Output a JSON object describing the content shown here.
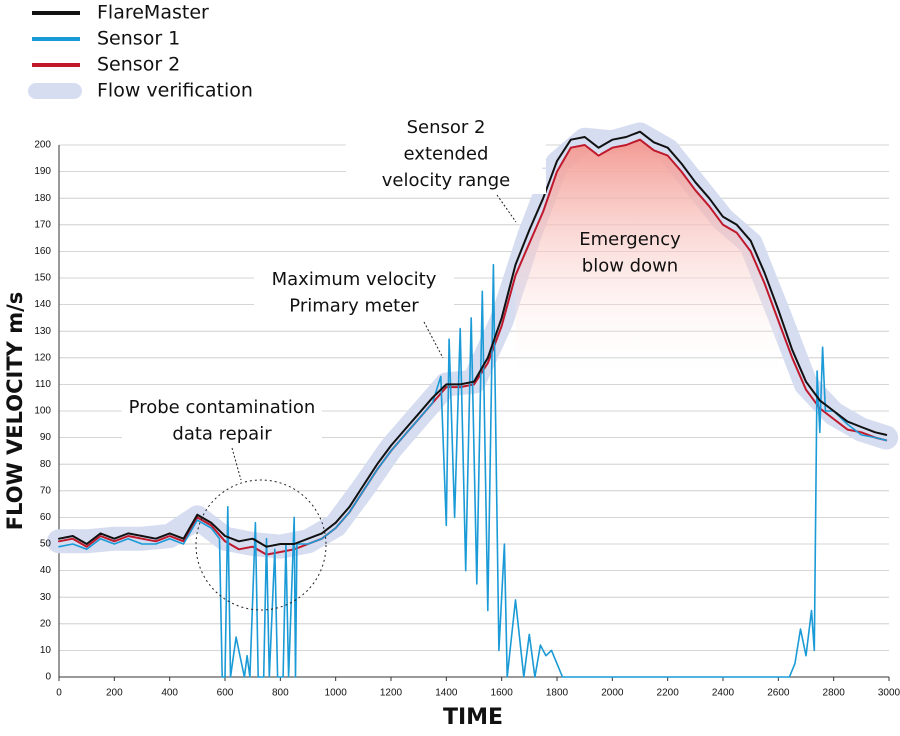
{
  "chart_data": {
    "type": "line",
    "xlabel": "TIME",
    "ylabel": "FLOW VELOCITY m/s",
    "xlim": [
      0,
      3000
    ],
    "ylim": [
      0,
      200
    ],
    "xticks": [
      0,
      200,
      400,
      600,
      800,
      1000,
      1200,
      1400,
      1600,
      1800,
      2000,
      2200,
      2400,
      2600,
      2800,
      3000
    ],
    "yticks": [
      0,
      10,
      20,
      30,
      40,
      50,
      60,
      70,
      80,
      90,
      100,
      110,
      120,
      130,
      140,
      150,
      160,
      170,
      180,
      190,
      200
    ],
    "grid": true,
    "series": [
      {
        "name": "FlareMaster",
        "color": "#111111",
        "x": [
          0,
          50,
          100,
          150,
          200,
          250,
          300,
          350,
          400,
          450,
          500,
          550,
          600,
          650,
          700,
          750,
          800,
          850,
          900,
          950,
          1000,
          1050,
          1100,
          1150,
          1200,
          1250,
          1300,
          1350,
          1400,
          1450,
          1500,
          1550,
          1600,
          1650,
          1700,
          1750,
          1800,
          1850,
          1900,
          1950,
          2000,
          2050,
          2100,
          2150,
          2200,
          2250,
          2300,
          2350,
          2400,
          2450,
          2500,
          2550,
          2600,
          2650,
          2700,
          2750,
          2800,
          2850,
          2900,
          2950,
          2990
        ],
        "values": [
          52,
          53,
          50,
          54,
          52,
          54,
          53,
          52,
          54,
          52,
          61,
          58,
          53,
          51,
          52,
          49,
          50,
          50,
          52,
          54,
          58,
          64,
          72,
          80,
          87,
          93,
          99,
          105,
          110,
          110,
          111,
          120,
          135,
          155,
          168,
          180,
          194,
          202,
          203,
          199,
          202,
          203,
          205,
          201,
          199,
          193,
          186,
          180,
          173,
          170,
          164,
          152,
          138,
          123,
          111,
          104,
          100,
          96,
          94,
          92,
          91
        ]
      },
      {
        "name": "Sensor 1",
        "color": "#1a9ad6",
        "x": [
          0,
          50,
          100,
          150,
          200,
          250,
          300,
          350,
          400,
          450,
          500,
          550,
          580,
          590,
          600,
          610,
          620,
          640,
          650,
          670,
          680,
          690,
          710,
          720,
          740,
          750,
          760,
          780,
          790,
          810,
          820,
          830,
          850,
          855,
          860,
          900,
          950,
          1000,
          1050,
          1100,
          1150,
          1200,
          1250,
          1300,
          1350,
          1380,
          1400,
          1410,
          1430,
          1450,
          1470,
          1490,
          1510,
          1530,
          1550,
          1570,
          1590,
          1610,
          1620,
          1650,
          1680,
          1700,
          1720,
          1740,
          1760,
          1780,
          1800,
          1820,
          2000,
          2640,
          2660,
          2680,
          2700,
          2720,
          2730,
          2740,
          2750,
          2760,
          2770,
          2800,
          2850,
          2900,
          2950,
          2990
        ],
        "values": [
          49,
          50,
          48,
          52,
          50,
          52,
          50,
          50,
          52,
          50,
          59,
          56,
          52,
          0,
          0,
          64,
          0,
          15,
          10,
          0,
          8,
          0,
          58,
          0,
          0,
          52,
          0,
          48,
          0,
          0,
          50,
          0,
          60,
          0,
          50,
          50,
          52,
          56,
          62,
          70,
          78,
          85,
          91,
          97,
          103,
          113,
          57,
          127,
          60,
          131,
          40,
          135,
          35,
          145,
          25,
          155,
          10,
          50,
          0,
          29,
          0,
          16,
          0,
          12,
          8,
          10,
          5,
          0,
          0,
          0,
          5,
          18,
          8,
          25,
          10,
          115,
          92,
          124,
          100,
          100,
          95,
          91,
          90,
          89
        ]
      },
      {
        "name": "Sensor 2",
        "color": "#c0192c",
        "x": [
          0,
          50,
          100,
          150,
          200,
          250,
          300,
          350,
          400,
          450,
          500,
          550,
          600,
          650,
          700,
          750,
          800,
          850,
          900,
          950,
          1000,
          1050,
          1100,
          1150,
          1200,
          1250,
          1300,
          1350,
          1400,
          1450,
          1500,
          1550,
          1600,
          1650,
          1700,
          1750,
          1800,
          1850,
          1900,
          1950,
          2000,
          2050,
          2100,
          2150,
          2200,
          2250,
          2300,
          2350,
          2400,
          2450,
          2500,
          2550,
          2600,
          2650,
          2700,
          2750,
          2800,
          2850,
          2900,
          2950,
          2990
        ],
        "values": [
          51,
          52,
          49,
          53,
          51,
          53,
          52,
          51,
          53,
          51,
          60,
          57,
          51,
          48,
          49,
          46,
          47,
          48,
          50,
          52,
          56,
          62,
          70,
          78,
          85,
          91,
          97,
          103,
          109,
          109,
          110,
          118,
          132,
          151,
          163,
          175,
          190,
          199,
          200,
          196,
          199,
          200,
          202,
          198,
          196,
          190,
          183,
          177,
          170,
          167,
          160,
          148,
          134,
          120,
          108,
          101,
          97,
          93,
          92,
          90,
          89
        ]
      },
      {
        "name": "Flow verification",
        "color": "#d6ddf1",
        "x": [
          0,
          100,
          200,
          300,
          400,
          500,
          600,
          700,
          800,
          900,
          1000,
          1100,
          1200,
          1300,
          1400,
          1500,
          1600,
          1700,
          1800,
          1900,
          2000,
          2100,
          2200,
          2300,
          2400,
          2500,
          2600,
          2700,
          2800,
          2900,
          2990
        ],
        "values": [
          51,
          51,
          52,
          52,
          53,
          60,
          52,
          50,
          49,
          51,
          57,
          71,
          86,
          98,
          110,
          111,
          134,
          166,
          193,
          202,
          201,
          204,
          198,
          185,
          172,
          163,
          137,
          110,
          99,
          93,
          90
        ]
      }
    ],
    "annotations": [
      {
        "lines": [
          "Probe contamination",
          "data repair"
        ]
      },
      {
        "lines": [
          "Maximum velocity",
          "Primary meter"
        ]
      },
      {
        "lines": [
          "Sensor 2",
          "extended",
          "velocity range"
        ]
      },
      {
        "lines": [
          "Emergency",
          "blow down"
        ]
      }
    ]
  }
}
